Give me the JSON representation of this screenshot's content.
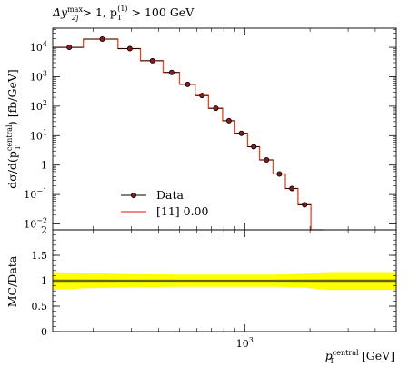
{
  "chart_data": {
    "type": "line",
    "title": "Δy^max_2j > 1, p_T^(1) > 100 GeV",
    "title_parts": {
      "a": "Δy",
      "a_sup": "max",
      "a_sub": "2j",
      "b": " > 1, p",
      "b_sup": "(1)",
      "b_sub": "T",
      "c": " > 100 GeV"
    },
    "ylabel_parts": {
      "a": "dσ/d(p",
      "a_sup": "central",
      "a_sub": "T",
      "b": ") [fb/GeV]"
    },
    "xlabel_parts": {
      "a": "p",
      "a_sup": "central",
      "a_sub": "T",
      "b": " [GeV]"
    },
    "ratio_ylabel": "MC/Data",
    "x_scale": "log",
    "xlim": [
      130,
      5000
    ],
    "ylim_log10": [
      -2.2,
      4.65
    ],
    "ratio_ylim": [
      0,
      2
    ],
    "y_ticks": [
      "10^4",
      "10^3",
      "10^2",
      "10^1",
      "1",
      "10^-1",
      "10^-2"
    ],
    "y_tick_exps": [
      4,
      3,
      2,
      1,
      0,
      -1,
      -2
    ],
    "ratio_y_ticks": [
      "2",
      "1.5",
      "1",
      "0.5",
      "0"
    ],
    "ratio_y_tick_values": [
      2,
      1.5,
      1,
      0.5,
      0
    ],
    "x_tick_label": "10^3",
    "x_tick_value": 1000,
    "legend": {
      "placement": "bottom-left",
      "entries": [
        "Data",
        "[11] 0.00"
      ]
    },
    "colors": {
      "data": "#000000",
      "data_fill": "#8b1a1a",
      "mc": "#e8451e",
      "band_outer": "#ffff00",
      "band_inner": "#cccc00"
    },
    "bin_edges": [
      130,
      180,
      260,
      330,
      420,
      500,
      590,
      680,
      790,
      900,
      1030,
      1170,
      1350,
      1540,
      1760,
      2020,
      2300
    ],
    "data_x": [
      155,
      220,
      295,
      375,
      460,
      545,
      635,
      735,
      845,
      965,
      1100,
      1260,
      1445,
      1650,
      1890,
      2160
    ],
    "data_y": [
      10000,
      19000,
      9000,
      3500,
      1400,
      550,
      230,
      85,
      32,
      12,
      4.2,
      1.5,
      0.5,
      0.16,
      0.045,
      0.0
    ],
    "mc_y": [
      10000,
      19000,
      9000,
      3500,
      1400,
      550,
      230,
      85,
      32,
      12,
      4.2,
      1.5,
      0.5,
      0.16,
      0.045,
      0.0
    ],
    "band_outer": {
      "x": [
        130,
        180,
        300,
        500,
        800,
        1400,
        1900,
        2400,
        5000
      ],
      "lo": [
        0.82,
        0.85,
        0.87,
        0.88,
        0.88,
        0.88,
        0.86,
        0.82,
        0.82
      ],
      "hi": [
        1.17,
        1.15,
        1.13,
        1.12,
        1.12,
        1.12,
        1.14,
        1.17,
        1.17
      ]
    },
    "band_inner": {
      "x": [
        130,
        500,
        1400,
        2400,
        5000
      ],
      "lo": [
        0.97,
        0.975,
        0.975,
        0.97,
        0.97
      ],
      "hi": [
        1.03,
        1.025,
        1.025,
        1.03,
        1.03
      ]
    },
    "ratio_line": 1.0
  }
}
